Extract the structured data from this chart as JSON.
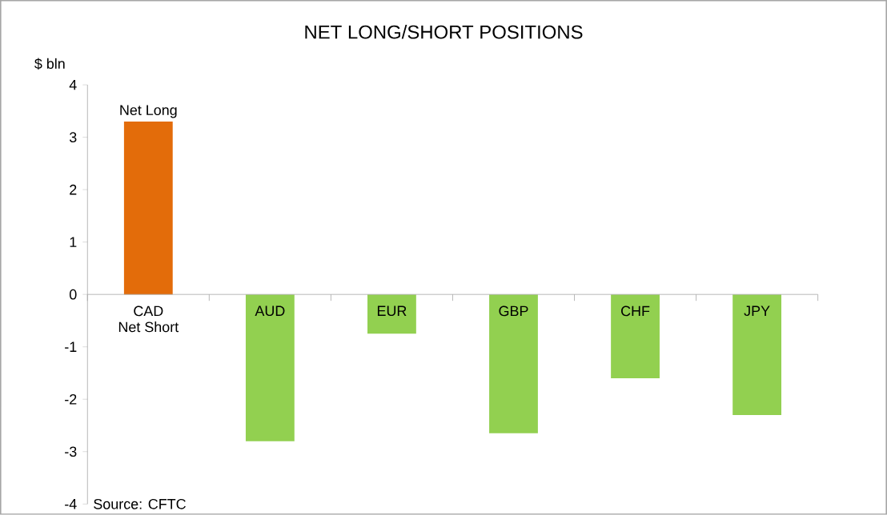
{
  "chart_data": {
    "type": "bar",
    "title": "NET LONG/SHORT POSITIONS",
    "ylabel": "$ bln",
    "categories": [
      "CAD",
      "AUD",
      "EUR",
      "GBP",
      "CHF",
      "JPY"
    ],
    "values": [
      3.3,
      -2.8,
      -0.75,
      -2.65,
      -1.6,
      -2.3
    ],
    "colors": [
      "#e36c0a",
      "#92d050",
      "#92d050",
      "#92d050",
      "#92d050",
      "#92d050"
    ],
    "ylim": [
      -4,
      4
    ],
    "yticks": [
      -4,
      -3,
      -2,
      -1,
      0,
      1,
      2,
      3,
      4
    ],
    "grid": false,
    "annotations": [
      "Net Long",
      "Net Short",
      "Source: CFTC"
    ]
  }
}
